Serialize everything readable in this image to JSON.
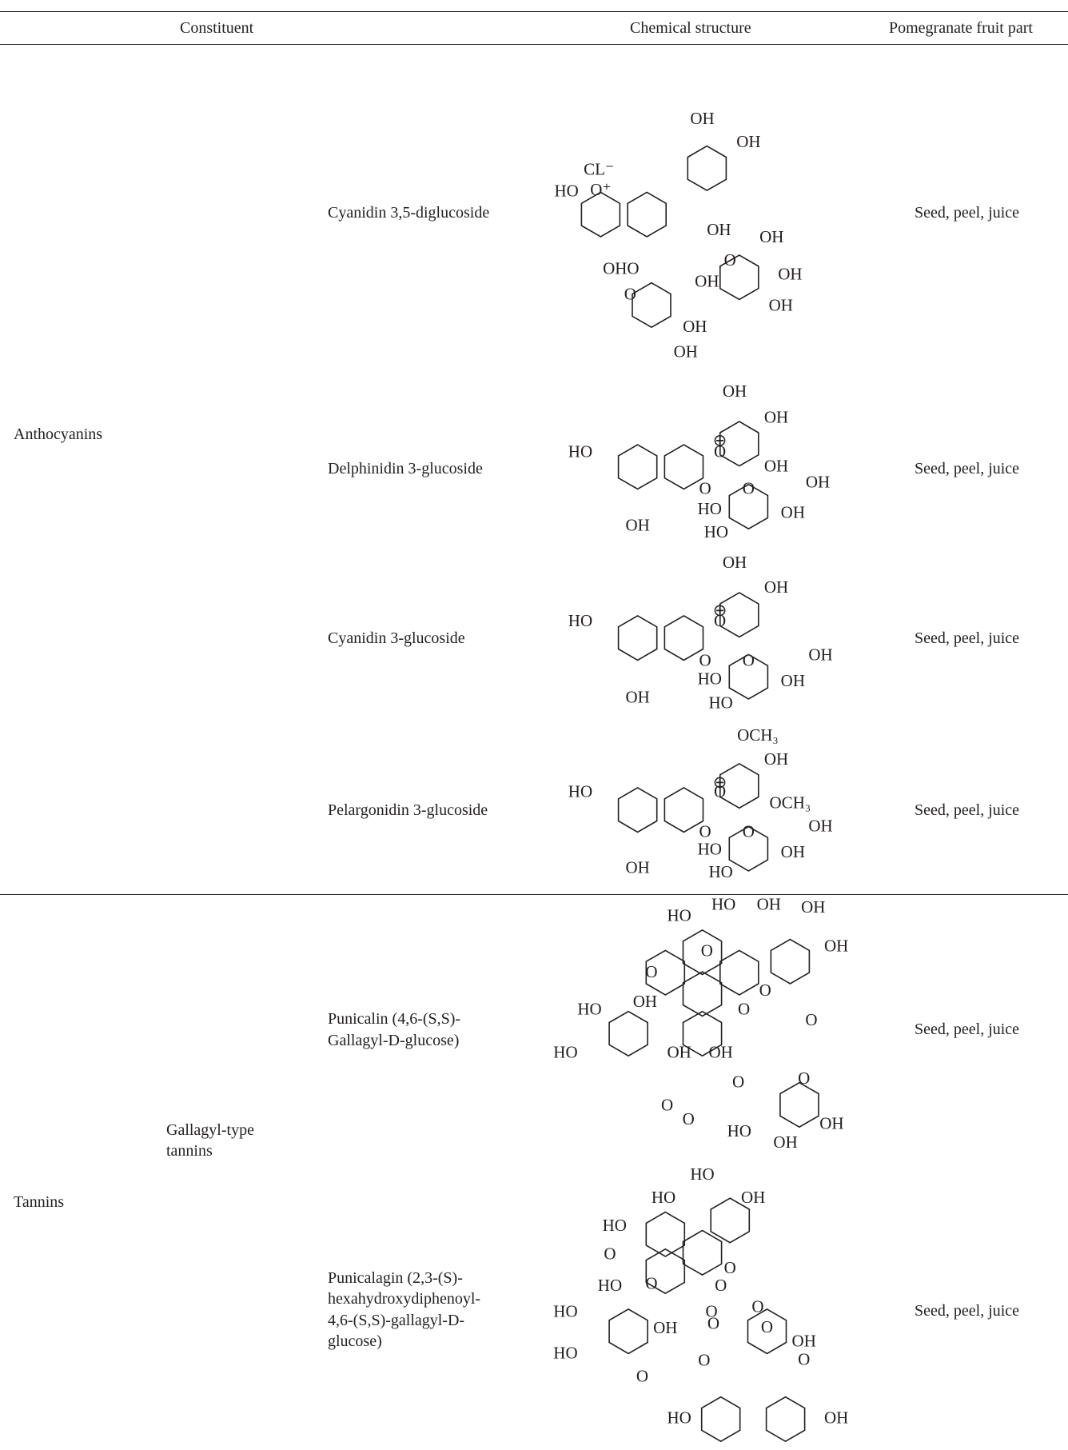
{
  "table": {
    "headers": [
      "Constituent",
      "Chemical structure",
      "Pomegranate fruit part"
    ],
    "groups": [
      {
        "label": "Anthocyanins",
        "rows": [
          {
            "name_lines": [
              "Cyanidin 3,5-diglucoside"
            ],
            "fruit_part": "Seed, peel, juice",
            "structure_labels": [
              "OH",
              "OH",
              "CL⁻",
              "O⁺",
              "HO",
              "OH",
              "OH",
              "O",
              "OH",
              "OHO",
              "OH",
              "O",
              "OH",
              "OH",
              "OH"
            ]
          },
          {
            "name_lines": [
              "Delphinidin 3-glucoside"
            ],
            "fruit_part": "Seed, peel, juice",
            "structure_labels": [
              "OH",
              "OH",
              "⊕",
              "O",
              "HO",
              "OH",
              "O",
              "O",
              "OH",
              "HO",
              "OH",
              "OH",
              "HO"
            ]
          },
          {
            "name_lines": [
              "Cyanidin 3-glucoside"
            ],
            "fruit_part": "Seed, peel, juice",
            "structure_labels": [
              "OH",
              "OH",
              "⊕",
              "O",
              "HO",
              "O",
              "O",
              "OH",
              "HO",
              "OH",
              "OH",
              "HO"
            ]
          },
          {
            "name_lines": [
              "Pelargonidin 3-glucoside"
            ],
            "fruit_part": "Seed, peel, juice",
            "structure_labels": [
              "OCH₃",
              "OH",
              "⊕",
              "O",
              "HO",
              "OCH₃",
              "O",
              "O",
              "OH",
              "HO",
              "OH",
              "OH",
              "HO"
            ]
          }
        ]
      },
      {
        "label": "Tannins",
        "subgroup_lines": [
          "Gallagyl-type",
          "tannins"
        ],
        "rows": [
          {
            "name_lines": [
              "Punicalin (4,6-(S,S)-",
              "Gallagyl-D-glucose)"
            ],
            "fruit_part": "Seed, peel, juice",
            "structure_labels": [
              "HO",
              "HO",
              "OH",
              "OH",
              "OH",
              "O",
              "O",
              "O",
              "OH",
              "HO",
              "O",
              "O",
              "HO",
              "OH",
              "OH",
              "O",
              "O",
              "O",
              "O",
              "OH",
              "HO",
              "OH"
            ]
          },
          {
            "name_lines": [
              "Punicalagin (2,3-(S)-",
              "hexahydroxydiphenoyl-",
              "4,6-(S,S)-gallagyl-D-",
              "glucose)"
            ],
            "fruit_part": "Seed, peel, juice",
            "structure_labels": [
              "HO",
              "HO",
              "OH",
              "HO",
              "O",
              "O",
              "O",
              "O",
              "HO",
              "O",
              "O",
              "O",
              "HO",
              "OH",
              "OH",
              "O",
              "HO",
              "O",
              "O",
              "O",
              "HO",
              "OH",
              "HO",
              "OH",
              "OH",
              "OH"
            ]
          }
        ]
      }
    ]
  }
}
